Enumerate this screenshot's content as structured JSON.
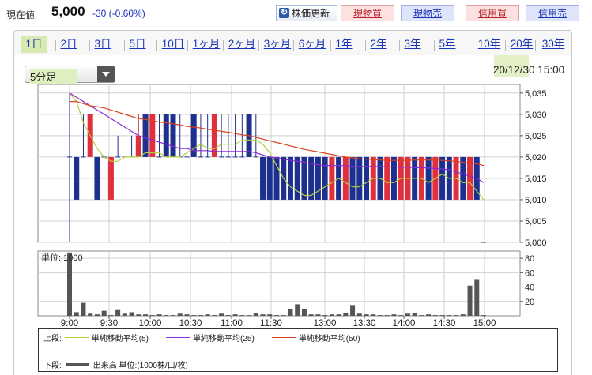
{
  "header": {
    "price_label": "現在値",
    "price_value": "5,000",
    "price_change": "-30 (-0.60%)",
    "refresh_label": "株価更新",
    "refresh_icon": "refresh-icon",
    "trade_buttons": [
      {
        "label": "現物買",
        "kind": "buy"
      },
      {
        "label": "現物売",
        "kind": "sell"
      },
      {
        "label": "信用買",
        "kind": "buy"
      },
      {
        "label": "信用売",
        "kind": "sell"
      }
    ]
  },
  "tabs": [
    {
      "label": "1日",
      "active": true
    },
    {
      "label": "2日"
    },
    {
      "label": "3日"
    },
    {
      "label": "5日"
    },
    {
      "label": "10日"
    },
    {
      "label": "1ヶ月"
    },
    {
      "label": "2ヶ月"
    },
    {
      "label": "3ヶ月"
    },
    {
      "label": "6ヶ月"
    },
    {
      "label": "1年"
    },
    {
      "label": "2年"
    },
    {
      "label": "3年"
    },
    {
      "label": "5年"
    },
    {
      "label": "10年"
    },
    {
      "label": "20年"
    },
    {
      "label": "30年"
    }
  ],
  "controls": {
    "interval_selected": "5分足",
    "datetime": "20/12/30 15:00"
  },
  "colors": {
    "up": "#e0303d",
    "down": "#1d2f8f",
    "ma5": "#b7cf3c",
    "ma25": "#8a2bd6",
    "ma50": "#d9431e",
    "volume": "#555555",
    "accent_highlight": "#d9eab0"
  },
  "chart_data": [
    {
      "type": "candlestick",
      "title": "",
      "x_ticks": [
        "9:00",
        "9:30",
        "10:00",
        "10:30",
        "11:00",
        "11:30",
        "13:00",
        "13:30",
        "14:00",
        "14:30",
        "15:00"
      ],
      "y_ticks": [
        "5,035",
        "5,030",
        "5,025",
        "5,020",
        "5,015",
        "5,010",
        "5,005",
        "5,000"
      ],
      "ylim": [
        5000,
        5037
      ],
      "grid": true,
      "candles": [
        {
          "o": 5020,
          "h": 5035,
          "l": 5000,
          "c": 5020
        },
        {
          "o": 5020,
          "h": 5020,
          "l": 5010,
          "c": 5010
        },
        {
          "o": 5020,
          "h": 5030,
          "l": 5020,
          "c": 5020
        },
        {
          "o": 5020,
          "h": 5030,
          "l": 5020,
          "c": 5030
        },
        {
          "o": 5020,
          "h": 5020,
          "l": 5010,
          "c": 5010
        },
        {
          "o": 5020,
          "h": 5020,
          "l": 5020,
          "c": 5020
        },
        {
          "o": 5010,
          "h": 5020,
          "l": 5010,
          "c": 5020
        },
        {
          "o": 5020,
          "h": 5025,
          "l": 5020,
          "c": 5020
        },
        {
          "o": 5020,
          "h": 5020,
          "l": 5020,
          "c": 5020
        },
        {
          "o": 5020,
          "h": 5025,
          "l": 5020,
          "c": 5020
        },
        {
          "o": 5020,
          "h": 5030,
          "l": 5020,
          "c": 5025
        },
        {
          "o": 5030,
          "h": 5030,
          "l": 5020,
          "c": 5020
        },
        {
          "o": 5020,
          "h": 5030,
          "l": 5020,
          "c": 5030
        },
        {
          "o": 5020,
          "h": 5030,
          "l": 5020,
          "c": 5020
        },
        {
          "o": 5030,
          "h": 5030,
          "l": 5020,
          "c": 5020
        },
        {
          "o": 5030,
          "h": 5030,
          "l": 5020,
          "c": 5020
        },
        {
          "o": 5020,
          "h": 5030,
          "l": 5020,
          "c": 5020
        },
        {
          "o": 5020,
          "h": 5030,
          "l": 5020,
          "c": 5020
        },
        {
          "o": 5030,
          "h": 5030,
          "l": 5020,
          "c": 5020
        },
        {
          "o": 5020,
          "h": 5030,
          "l": 5020,
          "c": 5020
        },
        {
          "o": 5020,
          "h": 5030,
          "l": 5020,
          "c": 5020
        },
        {
          "o": 5020,
          "h": 5030,
          "l": 5020,
          "c": 5030
        },
        {
          "o": 5020,
          "h": 5030,
          "l": 5020,
          "c": 5020
        },
        {
          "o": 5020,
          "h": 5030,
          "l": 5020,
          "c": 5020
        },
        {
          "o": 5020,
          "h": 5030,
          "l": 5020,
          "c": 5020
        },
        {
          "o": 5020,
          "h": 5030,
          "l": 5020,
          "c": 5020
        },
        {
          "o": 5030,
          "h": 5030,
          "l": 5020,
          "c": 5020
        },
        {
          "o": 5020,
          "h": 5030,
          "l": 5020,
          "c": 5020
        },
        {
          "o": 5020,
          "h": 5020,
          "l": 5010,
          "c": 5010
        },
        {
          "o": 5020,
          "h": 5020,
          "l": 5010,
          "c": 5010
        },
        {
          "o": 5020,
          "h": 5020,
          "l": 5010,
          "c": 5010
        },
        {
          "o": 5020,
          "h": 5020,
          "l": 5010,
          "c": 5010
        },
        {
          "o": 5020,
          "h": 5020,
          "l": 5010,
          "c": 5010
        },
        {
          "o": 5020,
          "h": 5020,
          "l": 5010,
          "c": 5010
        },
        {
          "o": 5020,
          "h": 5020,
          "l": 5010,
          "c": 5010
        },
        {
          "o": 5020,
          "h": 5020,
          "l": 5010,
          "c": 5010
        },
        {
          "o": 5020,
          "h": 5020,
          "l": 5010,
          "c": 5010
        },
        {
          "o": 5020,
          "h": 5020,
          "l": 5010,
          "c": 5010
        },
        {
          "o": 5010,
          "h": 5020,
          "l": 5010,
          "c": 5020
        },
        {
          "o": 5020,
          "h": 5020,
          "l": 5010,
          "c": 5010
        },
        {
          "o": 5010,
          "h": 5020,
          "l": 5010,
          "c": 5020
        },
        {
          "o": 5020,
          "h": 5020,
          "l": 5010,
          "c": 5010
        },
        {
          "o": 5020,
          "h": 5020,
          "l": 5010,
          "c": 5010
        },
        {
          "o": 5020,
          "h": 5020,
          "l": 5010,
          "c": 5010
        },
        {
          "o": 5010,
          "h": 5020,
          "l": 5010,
          "c": 5020
        },
        {
          "o": 5020,
          "h": 5020,
          "l": 5010,
          "c": 5010
        },
        {
          "o": 5010,
          "h": 5020,
          "l": 5010,
          "c": 5020
        },
        {
          "o": 5020,
          "h": 5020,
          "l": 5010,
          "c": 5010
        },
        {
          "o": 5010,
          "h": 5020,
          "l": 5010,
          "c": 5020
        },
        {
          "o": 5010,
          "h": 5020,
          "l": 5010,
          "c": 5020
        },
        {
          "o": 5020,
          "h": 5020,
          "l": 5010,
          "c": 5010
        },
        {
          "o": 5010,
          "h": 5020,
          "l": 5010,
          "c": 5020
        },
        {
          "o": 5020,
          "h": 5020,
          "l": 5010,
          "c": 5010
        },
        {
          "o": 5010,
          "h": 5020,
          "l": 5010,
          "c": 5020
        },
        {
          "o": 5020,
          "h": 5020,
          "l": 5010,
          "c": 5010
        },
        {
          "o": 5020,
          "h": 5020,
          "l": 5010,
          "c": 5010
        },
        {
          "o": 5010,
          "h": 5020,
          "l": 5010,
          "c": 5020
        },
        {
          "o": 5020,
          "h": 5020,
          "l": 5010,
          "c": 5010
        },
        {
          "o": 5010,
          "h": 5020,
          "l": 5010,
          "c": 5020
        },
        {
          "o": 5020,
          "h": 5020,
          "l": 5010,
          "c": 5010
        },
        {
          "o": 5000,
          "h": 5000,
          "l": 5000,
          "c": 5000
        }
      ],
      "moving_averages": [
        {
          "name": "単純移動平均(5)",
          "values": [
            5035,
            5033,
            5028,
            5025,
            5022,
            5020,
            5019,
            5019,
            5020,
            5020,
            5020,
            5021,
            5021,
            5021,
            5020,
            5020,
            5020,
            5021,
            5022,
            5023,
            5022,
            5022,
            5023,
            5023,
            5023,
            5024,
            5024,
            5024,
            5023,
            5021,
            5018,
            5015,
            5013,
            5012,
            5011,
            5011,
            5012,
            5013,
            5014,
            5015,
            5014,
            5013,
            5013,
            5014,
            5015,
            5015,
            5014,
            5014,
            5015,
            5015,
            5015,
            5015,
            5014,
            5015,
            5016,
            5015,
            5015,
            5014,
            5014,
            5012,
            5010
          ]
        },
        {
          "name": "単純移動平均(25)",
          "values": [
            5035,
            5034,
            5033,
            5032,
            5031,
            5030,
            5029,
            5028,
            5027,
            5026,
            5025,
            5024.5,
            5024,
            5023.5,
            5023,
            5022.5,
            5022,
            5022,
            5021.5,
            5021.5,
            5021.5,
            5021.3,
            5021.3,
            5021.3,
            5021.3,
            5021.3,
            5021.3,
            5021,
            5020.5,
            5020,
            5019.8,
            5019.5,
            5019.2,
            5019,
            5018.8,
            5018.5,
            5018.2,
            5018,
            5018,
            5018,
            5018,
            5017.8,
            5017.8,
            5017.8,
            5017.8,
            5017.8,
            5017.7,
            5017.7,
            5017.6,
            5017.6,
            5017.5,
            5017.5,
            5017.4,
            5017.3,
            5017.2,
            5017,
            5016.5,
            5016,
            5015.5,
            5015,
            5014
          ]
        },
        {
          "name": "単純移動平均(50)",
          "values": [
            5033,
            5033,
            5032.5,
            5032,
            5031.8,
            5031.5,
            5031,
            5030.5,
            5030,
            5029.5,
            5029,
            5028.8,
            5028.5,
            5028.2,
            5028,
            5027.8,
            5027.5,
            5027.2,
            5027,
            5026.8,
            5026.5,
            5026.3,
            5026,
            5025.8,
            5025.5,
            5025.2,
            5025,
            5024.6,
            5024.2,
            5023.8,
            5023.4,
            5023,
            5022.6,
            5022.2,
            5021.8,
            5021.5,
            5021.2,
            5020.9,
            5020.6,
            5020.3,
            5020,
            5019.8,
            5019.6,
            5019.5,
            5019.4,
            5019.3,
            5019.2,
            5019.2,
            5019.2,
            5019.2,
            5019.3,
            5019.3,
            5019.3,
            5019.3,
            5019.2,
            5019.1,
            5019,
            5018.8,
            5018.6,
            5018.4,
            5018
          ]
        }
      ]
    },
    {
      "type": "bar",
      "title": "",
      "unit_label": "単位: 1000",
      "y_ticks": [
        "80",
        "60",
        "40",
        "20"
      ],
      "ylim": [
        0,
        90
      ],
      "x_ticks": [
        "9:00",
        "9:30",
        "10:00",
        "10:30",
        "11:00",
        "11:30",
        "13:00",
        "13:30",
        "14:00",
        "14:30",
        "15:00"
      ],
      "values": [
        88,
        5,
        18,
        3,
        2,
        7,
        1,
        8,
        3,
        5,
        2,
        2,
        1,
        2,
        1,
        1,
        3,
        2,
        1,
        1,
        2,
        1,
        3,
        1,
        2,
        1,
        1,
        4,
        2,
        2,
        1,
        1,
        9,
        16,
        9,
        2,
        2,
        1,
        2,
        2,
        4,
        15,
        3,
        2,
        2,
        1,
        1,
        2,
        1,
        3,
        4,
        1,
        2,
        1,
        1,
        1,
        1,
        2,
        42,
        50,
        1
      ],
      "series_name": "出来高"
    }
  ],
  "legend": {
    "top_label": "上段:",
    "items": [
      {
        "label": "単純移動平均(5)"
      },
      {
        "label": "単純移動平均(25)"
      },
      {
        "label": "単純移動平均(50)"
      }
    ],
    "bottom_label": "下段:",
    "volume_label": "出来高 単位:(1000株/口/枚)"
  }
}
